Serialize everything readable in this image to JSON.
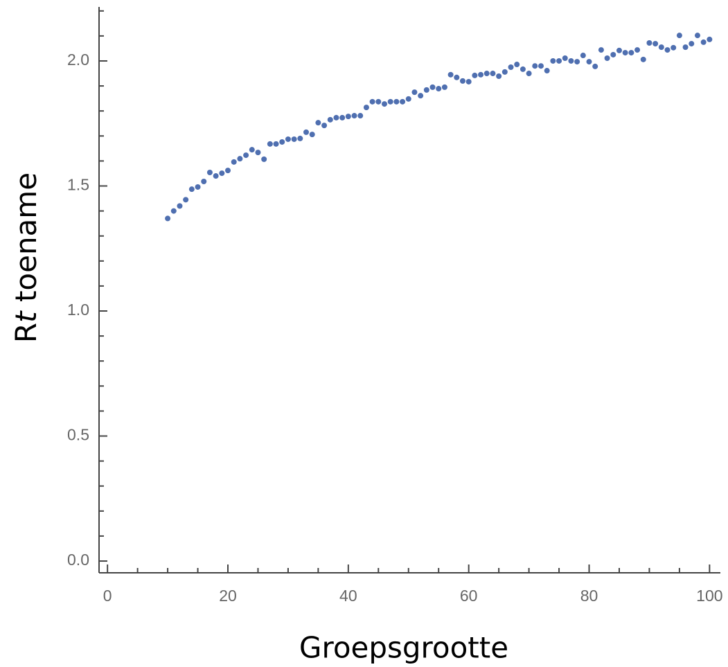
{
  "chart_data": {
    "type": "scatter",
    "xlabel": "Groepsgrootte",
    "ylabel": [
      "R",
      "t",
      " toename"
    ],
    "color": "#4f6fb0",
    "xlim": [
      -1.4,
      101.8
    ],
    "ylim": [
      -0.047,
      2.216
    ],
    "xticks": [
      0,
      20,
      40,
      60,
      80,
      100
    ],
    "yticks": [
      {
        "value": 0,
        "label": "0.0"
      },
      0.5,
      {
        "value": 1,
        "label": "1.0"
      },
      1.5,
      {
        "value": 2,
        "label": "2.0"
      }
    ],
    "xminorticks": [
      5,
      10,
      15,
      25,
      30,
      35,
      45,
      50,
      55,
      65,
      70,
      75,
      85,
      90,
      95
    ],
    "yminorticks": [
      0.1,
      0.2,
      0.3,
      0.4,
      0.6,
      0.7,
      0.8,
      0.9,
      1.1,
      1.2,
      1.3,
      1.4,
      1.6,
      1.7,
      1.8,
      1.9,
      2.1,
      2.2
    ],
    "x": [
      10,
      11,
      12,
      13,
      14,
      15,
      16,
      17,
      18,
      19,
      20,
      21,
      22,
      23,
      24,
      25,
      26,
      27,
      28,
      29,
      30,
      31,
      32,
      33,
      34,
      35,
      36,
      37,
      38,
      39,
      40,
      41,
      42,
      43,
      44,
      45,
      46,
      47,
      48,
      49,
      50,
      51,
      52,
      53,
      54,
      55,
      56,
      57,
      58,
      59,
      60,
      61,
      62,
      63,
      64,
      65,
      66,
      67,
      68,
      69,
      70,
      71,
      72,
      73,
      74,
      75,
      76,
      77,
      78,
      79,
      80,
      81,
      82,
      83,
      84,
      85,
      86,
      87,
      88,
      89,
      90,
      91,
      92,
      93,
      94,
      95,
      96,
      97,
      98,
      99,
      100
    ],
    "values": [
      1.37,
      1.4,
      1.42,
      1.445,
      1.487,
      1.496,
      1.518,
      1.554,
      1.54,
      1.551,
      1.562,
      1.596,
      1.609,
      1.623,
      1.645,
      1.634,
      1.607,
      1.668,
      1.668,
      1.676,
      1.687,
      1.687,
      1.69,
      1.715,
      1.706,
      1.753,
      1.742,
      1.765,
      1.773,
      1.773,
      1.778,
      1.781,
      1.781,
      1.814,
      1.837,
      1.837,
      1.828,
      1.837,
      1.837,
      1.837,
      1.848,
      1.875,
      1.861,
      1.884,
      1.895,
      1.889,
      1.895,
      1.945,
      1.934,
      1.92,
      1.917,
      1.942,
      1.945,
      1.95,
      1.95,
      1.939,
      1.956,
      1.975,
      1.986,
      1.967,
      1.95,
      1.98,
      1.98,
      1.961,
      2.0,
      2.0,
      2.011,
      2.0,
      1.997,
      2.022,
      1.997,
      1.978,
      2.044,
      2.011,
      2.025,
      2.042,
      2.033,
      2.033,
      2.044,
      2.006,
      2.072,
      2.069,
      2.055,
      2.044,
      2.053,
      2.102,
      2.055,
      2.069,
      2.102,
      2.075,
      2.086
    ]
  }
}
